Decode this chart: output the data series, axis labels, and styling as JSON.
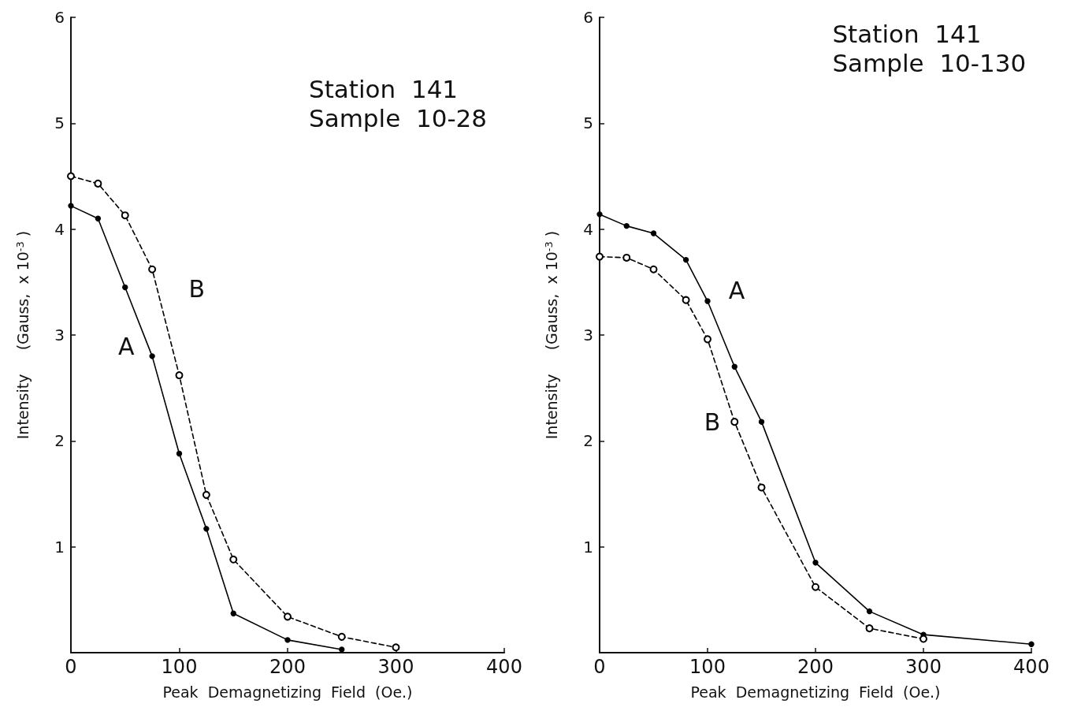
{
  "chart_data": [
    {
      "type": "line",
      "title": "Station  141",
      "subtitle": "Sample  10-28",
      "xlabel": "Peak  Demagnetizing  Field  (Oe.)",
      "ylabel": "Intensity     (Gauss,  x 10$^{-3}$ )",
      "xlim": [
        0,
        400
      ],
      "xticks": [
        0,
        100,
        200,
        300,
        400
      ],
      "ylim": [
        0,
        6
      ],
      "yticks": [
        1,
        2,
        3,
        4,
        5,
        6
      ],
      "grid": false,
      "marker": "circle",
      "series": [
        {
          "name": "A",
          "color": "#000000",
          "line_style": "solid",
          "x": [
            0,
            25,
            50,
            75,
            100,
            125,
            150,
            200,
            250
          ],
          "values": [
            4.22,
            4.1,
            3.45,
            2.8,
            1.88,
            1.17,
            0.37,
            0.12,
            0.03
          ]
        },
        {
          "name": "B",
          "color": "#000000",
          "line_style": "dashed",
          "x": [
            0,
            25,
            50,
            75,
            100,
            125,
            150,
            200,
            250,
            300
          ],
          "values": [
            4.5,
            4.43,
            4.13,
            3.62,
            2.62,
            1.49,
            0.88,
            0.34,
            0.15,
            0.05
          ]
        }
      ]
    },
    {
      "type": "line",
      "title": "Station  141",
      "subtitle": "Sample  10-130",
      "xlabel": "Peak  Demagnetizing  Field  (Oe.)",
      "ylabel": "Intensity     (Gauss,  x 10$^{-3}$ )",
      "xlim": [
        0,
        400
      ],
      "xticks": [
        0,
        100,
        200,
        300,
        400
      ],
      "ylim": [
        0,
        6
      ],
      "yticks": [
        1,
        2,
        3,
        4,
        5,
        6
      ],
      "grid": false,
      "marker": "circle",
      "series": [
        {
          "name": "A",
          "color": "#000000",
          "line_style": "solid",
          "x": [
            0,
            25,
            50,
            80,
            100,
            125,
            150,
            200,
            250,
            300,
            400
          ],
          "values": [
            4.14,
            4.03,
            3.96,
            3.71,
            3.32,
            2.7,
            2.18,
            0.85,
            0.39,
            0.17,
            0.08
          ]
        },
        {
          "name": "B",
          "color": "#000000",
          "line_style": "dashed",
          "x": [
            0,
            25,
            50,
            80,
            100,
            125,
            150,
            200,
            250,
            300
          ],
          "values": [
            3.74,
            3.73,
            3.62,
            3.33,
            2.96,
            2.18,
            1.56,
            0.62,
            0.23,
            0.13
          ]
        }
      ]
    }
  ]
}
